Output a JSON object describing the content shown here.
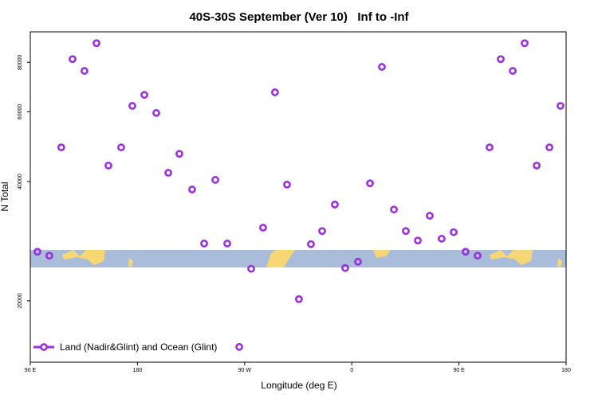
{
  "chart_data": {
    "type": "scatter",
    "title": "40S-30S September (Ver 10)   Inf to -Inf",
    "x_label": "Longitude (deg E)",
    "y_label": "N Total",
    "log_y": true,
    "legend": "bottom-left",
    "x": [
      96,
      106,
      116,
      125.5,
      135.5,
      145.6,
      155.6,
      166.3,
      175.7,
      185.8,
      195.8,
      205.9,
      215.2,
      225.9,
      236,
      245.4,
      255.4,
      265.5,
      275.5,
      285.5,
      295.5,
      305.6,
      315.6,
      325.7,
      335.1,
      345.8,
      354.5,
      365.2,
      375.3,
      385.3,
      395.4,
      405.4,
      415.5,
      425.5,
      435.5,
      445.6,
      455.6,
      465.7,
      475.7,
      485.1,
      495.2,
      505.2,
      515.3,
      526,
      535.3
    ],
    "series": [
      {
        "name": "Land (Nadir&Glint) and Ocean (Glint)",
        "color": "#9b30e0",
        "values": [
          26600,
          26000,
          48800,
          81500,
          76100,
          89400,
          43900,
          48800,
          62100,
          66200,
          59600,
          42100,
          47000,
          38200,
          27900,
          40400,
          27900,
          15300,
          24100,
          30600,
          67200,
          39300,
          20200,
          27800,
          30000,
          35000,
          24200,
          25100,
          39600,
          77900,
          34000,
          30000,
          28400,
          32800,
          28700,
          29800,
          26600,
          26000,
          48800,
          81500,
          76100,
          89400,
          43900,
          48800,
          62100
        ]
      }
    ],
    "xlim": [
      90,
      540
    ],
    "xticks": [
      {
        "value": 90,
        "label": "90 E"
      },
      180,
      {
        "value": 270,
        "label": "90 W"
      },
      {
        "value": 360,
        "label": "0"
      },
      {
        "value": 450,
        "label": "90 E"
      },
      {
        "value": 540,
        "label": "180"
      }
    ],
    "ylim": [
      14000,
      95500
    ],
    "yticks": [
      20000,
      40000,
      60000,
      80000
    ]
  }
}
